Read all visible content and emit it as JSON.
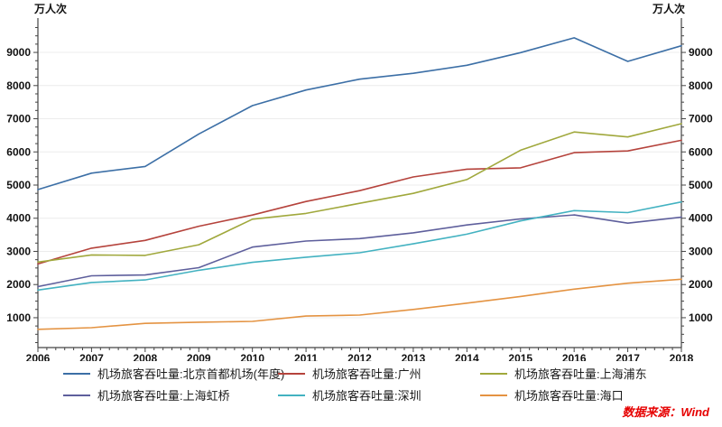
{
  "chart_data": {
    "type": "line",
    "title": "",
    "unit_label_left": "万人次",
    "unit_label_right": "万人次",
    "x": [
      2006,
      2007,
      2008,
      2009,
      2010,
      2011,
      2012,
      2013,
      2014,
      2015,
      2016,
      2017,
      2018
    ],
    "yticks": [
      1000,
      2000,
      3000,
      4000,
      5000,
      6000,
      7000,
      8000,
      9000
    ],
    "ylim": [
      100,
      9900
    ],
    "grid": "horizontal",
    "legend_position": "bottom",
    "series": [
      {
        "name": "机场旅客吞吐量:北京首都机场(年度)",
        "color": "#3c6fa6",
        "values": [
          4865,
          5358,
          5560,
          6540,
          7395,
          7867,
          8193,
          8371,
          8613,
          8994,
          9439,
          8730,
          9200
        ]
      },
      {
        "name": "机场旅客吞吐量:广州",
        "color": "#b5433c",
        "values": [
          2622,
          3096,
          3330,
          3760,
          4096,
          4504,
          4831,
          5245,
          5478,
          5521,
          5978,
          6030,
          6350
        ]
      },
      {
        "name": "机场旅客吞吐量:上海浦东",
        "color": "#a0a83c",
        "values": [
          2679,
          2892,
          2880,
          3200,
          3970,
          4145,
          4450,
          4750,
          5166,
          6050,
          6600,
          6450,
          6850
        ]
      },
      {
        "name": "机场旅客吞吐量:上海虹桥",
        "color": "#5e5f9c",
        "values": [
          1937,
          2263,
          2288,
          2510,
          3130,
          3311,
          3387,
          3560,
          3797,
          3980,
          4100,
          3850,
          4030
        ]
      },
      {
        "name": "机场旅客吞吐量:深圳",
        "color": "#43b2c1",
        "values": [
          1835,
          2062,
          2140,
          2430,
          2671,
          2824,
          2957,
          3227,
          3520,
          3920,
          4230,
          4170,
          4490
        ]
      },
      {
        "name": "机场旅客吞吐量:海口",
        "color": "#e49342",
        "values": [
          650,
          700,
          830,
          865,
          890,
          1050,
          1080,
          1250,
          1440,
          1640,
          1860,
          2040,
          2160
        ]
      }
    ]
  },
  "footer": {
    "source_label": "数据来源：Wind"
  }
}
